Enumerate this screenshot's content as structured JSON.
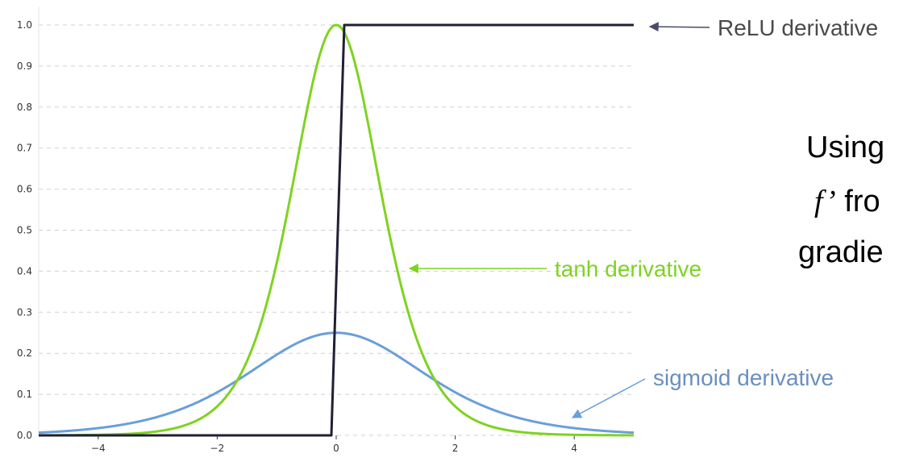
{
  "chart_data": {
    "type": "line",
    "title": "",
    "xlabel": "",
    "ylabel": "",
    "xlim": [
      -5,
      5
    ],
    "ylim": [
      0,
      1
    ],
    "x_ticks": [
      -4,
      -2,
      0,
      2,
      4
    ],
    "x_tick_labels": [
      "−4",
      "−2",
      "0",
      "2",
      "4"
    ],
    "y_ticks": [
      0.0,
      0.1,
      0.2,
      0.3,
      0.4,
      0.5,
      0.6,
      0.7,
      0.8,
      0.9,
      1.0
    ],
    "y_tick_labels": [
      "0.0",
      "0.1",
      "0.2",
      "0.3",
      "0.4",
      "0.5",
      "0.6",
      "0.7",
      "0.8",
      "0.9",
      "1.0"
    ],
    "grid": "horizontal dashed",
    "x": [
      -5,
      -4.5,
      -4,
      -3.5,
      -3,
      -2.5,
      -2,
      -1.5,
      -1,
      -0.5,
      0,
      0.5,
      1,
      1.5,
      2,
      2.5,
      3,
      3.5,
      4,
      4.5,
      5
    ],
    "series": [
      {
        "name": "ReLU derivative",
        "color": "#1f1f36",
        "values": [
          0,
          0,
          0,
          0,
          0,
          0,
          0,
          0,
          0,
          0,
          1,
          1,
          1,
          1,
          1,
          1,
          1,
          1,
          1,
          1,
          1
        ]
      },
      {
        "name": "tanh derivative",
        "color": "#7ed321",
        "values": [
          0.0002,
          0.0005,
          0.0013,
          0.0036,
          0.0099,
          0.0266,
          0.0707,
          0.1807,
          0.42,
          0.7864,
          1.0,
          0.7864,
          0.42,
          0.1807,
          0.0707,
          0.0266,
          0.0099,
          0.0036,
          0.0013,
          0.0005,
          0.0002
        ]
      },
      {
        "name": "sigmoid derivative",
        "color": "#6a9fd8",
        "values": [
          0.0066,
          0.0109,
          0.0177,
          0.0285,
          0.0452,
          0.0701,
          0.105,
          0.1491,
          0.1966,
          0.235,
          0.25,
          0.235,
          0.1966,
          0.1491,
          0.105,
          0.0701,
          0.0452,
          0.0285,
          0.0177,
          0.0109,
          0.0066
        ]
      }
    ],
    "annotations": [
      {
        "text": "ReLU derivative",
        "color": "#4a4a4a"
      },
      {
        "text": "tanh derivative",
        "color": "#7ed321"
      },
      {
        "text": "sigmoid derivative",
        "color": "#6a8fc0"
      }
    ]
  },
  "side_text": {
    "line1": "Using",
    "line2_italic": "f’",
    "line2_rest": "fro",
    "line3": "gradie"
  }
}
